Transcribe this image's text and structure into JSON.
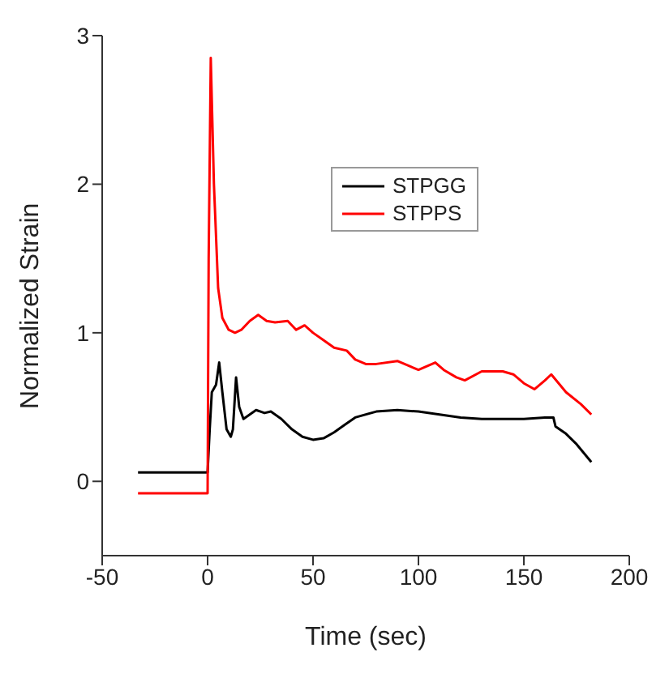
{
  "chart_data": {
    "type": "line",
    "xlabel": "Time (sec)",
    "ylabel": "Normalized Strain",
    "xlim": [
      -50,
      200
    ],
    "xticks": [
      -50,
      0,
      50,
      100,
      150,
      200
    ],
    "ylim": [
      -0.5,
      3
    ],
    "yticks": [
      0,
      1,
      2,
      3
    ],
    "grid": false,
    "legend": "top",
    "marker": "none",
    "line_style": "solid",
    "series": [
      {
        "name": "STPGG",
        "color": "#000000",
        "x": [
          -33,
          0,
          1,
          2,
          4,
          5.5,
          7,
          9,
          11,
          12,
          13.5,
          15,
          17,
          20,
          23,
          27,
          30,
          35,
          40,
          45,
          50,
          55,
          60,
          65,
          70,
          80,
          90,
          100,
          110,
          120,
          130,
          140,
          150,
          160,
          164,
          165,
          170,
          175,
          182
        ],
        "values": [
          0.06,
          0.06,
          0.35,
          0.6,
          0.65,
          0.8,
          0.6,
          0.35,
          0.3,
          0.35,
          0.7,
          0.5,
          0.42,
          0.45,
          0.48,
          0.46,
          0.47,
          0.42,
          0.35,
          0.3,
          0.28,
          0.29,
          0.33,
          0.38,
          0.43,
          0.47,
          0.48,
          0.47,
          0.45,
          0.43,
          0.42,
          0.42,
          0.42,
          0.43,
          0.43,
          0.37,
          0.32,
          0.25,
          0.13
        ]
      },
      {
        "name": "STPPS",
        "color": "#ff0000",
        "x": [
          -33,
          0,
          0.5,
          1.5,
          3,
          5,
          7,
          10,
          13,
          16,
          20,
          24,
          28,
          32,
          38,
          42,
          46,
          50,
          55,
          60,
          66,
          70,
          75,
          80,
          90,
          95,
          100,
          108,
          112,
          118,
          122,
          130,
          140,
          145,
          150,
          155,
          160,
          163,
          170,
          177,
          182
        ],
        "values": [
          -0.08,
          -0.08,
          1.5,
          2.85,
          2.0,
          1.3,
          1.1,
          1.02,
          1.0,
          1.02,
          1.08,
          1.12,
          1.08,
          1.07,
          1.08,
          1.02,
          1.05,
          1.0,
          0.95,
          0.9,
          0.88,
          0.82,
          0.79,
          0.79,
          0.81,
          0.78,
          0.75,
          0.8,
          0.75,
          0.7,
          0.68,
          0.74,
          0.74,
          0.72,
          0.66,
          0.62,
          0.68,
          0.72,
          0.6,
          0.52,
          0.45
        ]
      }
    ]
  }
}
